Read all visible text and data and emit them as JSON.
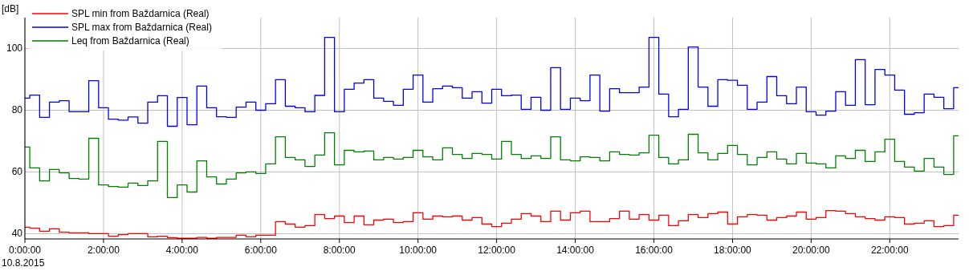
{
  "chart_data": {
    "type": "step",
    "ylabel": "[dB]",
    "x": [
      0,
      0.125,
      0.375,
      0.625,
      0.875,
      1.125,
      1.375,
      1.625,
      1.875,
      2.125,
      2.375,
      2.625,
      2.875,
      3.125,
      3.375,
      3.625,
      3.875,
      4.125,
      4.375,
      4.625,
      4.875,
      5.125,
      5.375,
      5.625,
      5.875,
      6.125,
      6.375,
      6.625,
      6.875,
      7.125,
      7.375,
      7.625,
      7.875,
      8.125,
      8.375,
      8.625,
      8.875,
      9.125,
      9.375,
      9.625,
      9.875,
      10.125,
      10.375,
      10.625,
      10.875,
      11.125,
      11.375,
      11.625,
      11.875,
      12.125,
      12.375,
      12.625,
      12.875,
      13.125,
      13.375,
      13.625,
      13.875,
      14.125,
      14.375,
      14.625,
      14.875,
      15.125,
      15.375,
      15.625,
      15.875,
      16.125,
      16.375,
      16.625,
      16.875,
      17.125,
      17.375,
      17.625,
      17.875,
      18.125,
      18.375,
      18.625,
      18.875,
      19.125,
      19.375,
      19.625,
      19.875,
      20.125,
      20.375,
      20.625,
      20.875,
      21.125,
      21.375,
      21.625,
      21.875,
      22.125,
      22.375,
      22.625,
      22.875,
      23.125,
      23.375,
      23.625,
      23.75
    ],
    "series": [
      {
        "name": "SPL min from Baždarnica (Real)",
        "color": "#ff0000",
        "values": [
          42.1,
          41.8,
          40.8,
          41.6,
          40.5,
          40.3,
          40.3,
          40.0,
          40.0,
          39.2,
          39.7,
          40.0,
          40.0,
          39.0,
          39.2,
          38.7,
          38.5,
          38.5,
          38.8,
          38.5,
          38.8,
          38.8,
          39.5,
          39.0,
          39.5,
          39.5,
          43.9,
          43.1,
          42.1,
          42.6,
          46.2,
          44.9,
          45.7,
          43.6,
          45.7,
          42.9,
          44.4,
          44.7,
          43.6,
          43.9,
          46.8,
          44.7,
          45.7,
          45.5,
          45.7,
          44.4,
          45.2,
          43.1,
          42.3,
          43.4,
          44.7,
          46.5,
          45.7,
          43.9,
          47.3,
          44.4,
          46.8,
          47.3,
          43.9,
          43.9,
          44.9,
          47.3,
          44.7,
          46.2,
          44.4,
          46.0,
          42.6,
          44.2,
          46.2,
          45.2,
          46.5,
          47.0,
          43.1,
          45.5,
          46.2,
          46.0,
          44.4,
          45.2,
          45.7,
          47.0,
          44.7,
          45.2,
          47.5,
          47.3,
          46.5,
          45.5,
          44.9,
          44.4,
          45.5,
          45.2,
          43.1,
          43.4,
          44.2,
          42.3,
          42.6,
          46.0,
          46.0
        ]
      },
      {
        "name": "SPL max from Baždarnica (Real)",
        "color": "#0000ff",
        "values": [
          83.9,
          84.9,
          77.7,
          82.6,
          83.1,
          79.5,
          79.5,
          89.6,
          80.8,
          77.1,
          76.8,
          77.8,
          75.8,
          82.6,
          84.7,
          74.8,
          84.1,
          75.3,
          87.8,
          80.8,
          77.9,
          77.7,
          81.0,
          82.6,
          80.0,
          82.1,
          89.9,
          81.3,
          80.8,
          79.5,
          84.8,
          103.6,
          79.5,
          86.8,
          88.8,
          89.9,
          83.9,
          82.9,
          81.6,
          86.8,
          91.4,
          82.6,
          87.0,
          87.8,
          87.3,
          83.9,
          86.0,
          82.3,
          86.8,
          84.7,
          84.9,
          80.3,
          84.2,
          80.0,
          93.8,
          80.3,
          83.9,
          83.1,
          91.4,
          79.7,
          87.0,
          85.7,
          85.7,
          87.5,
          103.6,
          85.2,
          77.9,
          80.3,
          100.5,
          87.5,
          81.3,
          89.9,
          89.7,
          88.1,
          80.3,
          82.6,
          90.9,
          84.7,
          82.1,
          87.5,
          79.5,
          78.4,
          79.7,
          86.0,
          81.6,
          96.4,
          81.8,
          93.2,
          91.4,
          86.5,
          78.7,
          79.2,
          85.2,
          84.2,
          80.5,
          87.3,
          87.3
        ]
      },
      {
        "name": "Leq from Baždarnica (Real)",
        "color": "#008000",
        "values": [
          68.1,
          61.3,
          57.1,
          60.8,
          59.7,
          57.9,
          57.7,
          70.9,
          55.8,
          55.3,
          55.1,
          56.4,
          55.6,
          57.1,
          69.9,
          51.7,
          55.8,
          53.5,
          63.6,
          58.4,
          56.1,
          57.7,
          59.7,
          60.0,
          59.5,
          62.6,
          71.4,
          64.7,
          63.9,
          61.8,
          65.5,
          72.7,
          62.3,
          67.0,
          66.5,
          66.8,
          63.9,
          64.7,
          64.2,
          64.7,
          67.0,
          64.9,
          63.9,
          67.8,
          65.7,
          64.4,
          66.0,
          65.7,
          64.2,
          69.9,
          65.7,
          64.4,
          65.2,
          64.4,
          71.4,
          63.9,
          63.6,
          64.9,
          64.7,
          63.6,
          66.5,
          65.7,
          65.5,
          66.2,
          71.9,
          64.7,
          62.6,
          63.9,
          72.2,
          66.2,
          63.9,
          66.0,
          68.6,
          65.7,
          62.3,
          64.7,
          66.5,
          64.2,
          62.6,
          66.0,
          62.9,
          62.6,
          61.3,
          65.2,
          64.4,
          67.0,
          63.4,
          66.5,
          70.6,
          63.4,
          61.6,
          60.3,
          64.4,
          61.6,
          59.2,
          71.7,
          71.7
        ]
      }
    ],
    "xlim": [
      0,
      23.75
    ],
    "xticks": [
      {
        "value": 0,
        "label": "0:00:00"
      },
      {
        "value": 2,
        "label": "2:00:00"
      },
      {
        "value": 4,
        "label": "4:00:00"
      },
      {
        "value": 6,
        "label": "6:00:00"
      },
      {
        "value": 8,
        "label": "8:00:00"
      },
      {
        "value": 10,
        "label": "10:00:00"
      },
      {
        "value": 12,
        "label": "12:00:00"
      },
      {
        "value": 14,
        "label": "14:00:00"
      },
      {
        "value": 16,
        "label": "16:00:00"
      },
      {
        "value": 18,
        "label": "18:00:00"
      },
      {
        "value": 20,
        "label": "20:00:00"
      },
      {
        "value": 22,
        "label": "22:00:00"
      }
    ],
    "ylim": [
      38.3,
      110
    ],
    "yticks": [
      40,
      60,
      80,
      100
    ],
    "grid": true,
    "legend": "top left",
    "annotations": [
      "10.8.2015"
    ]
  }
}
